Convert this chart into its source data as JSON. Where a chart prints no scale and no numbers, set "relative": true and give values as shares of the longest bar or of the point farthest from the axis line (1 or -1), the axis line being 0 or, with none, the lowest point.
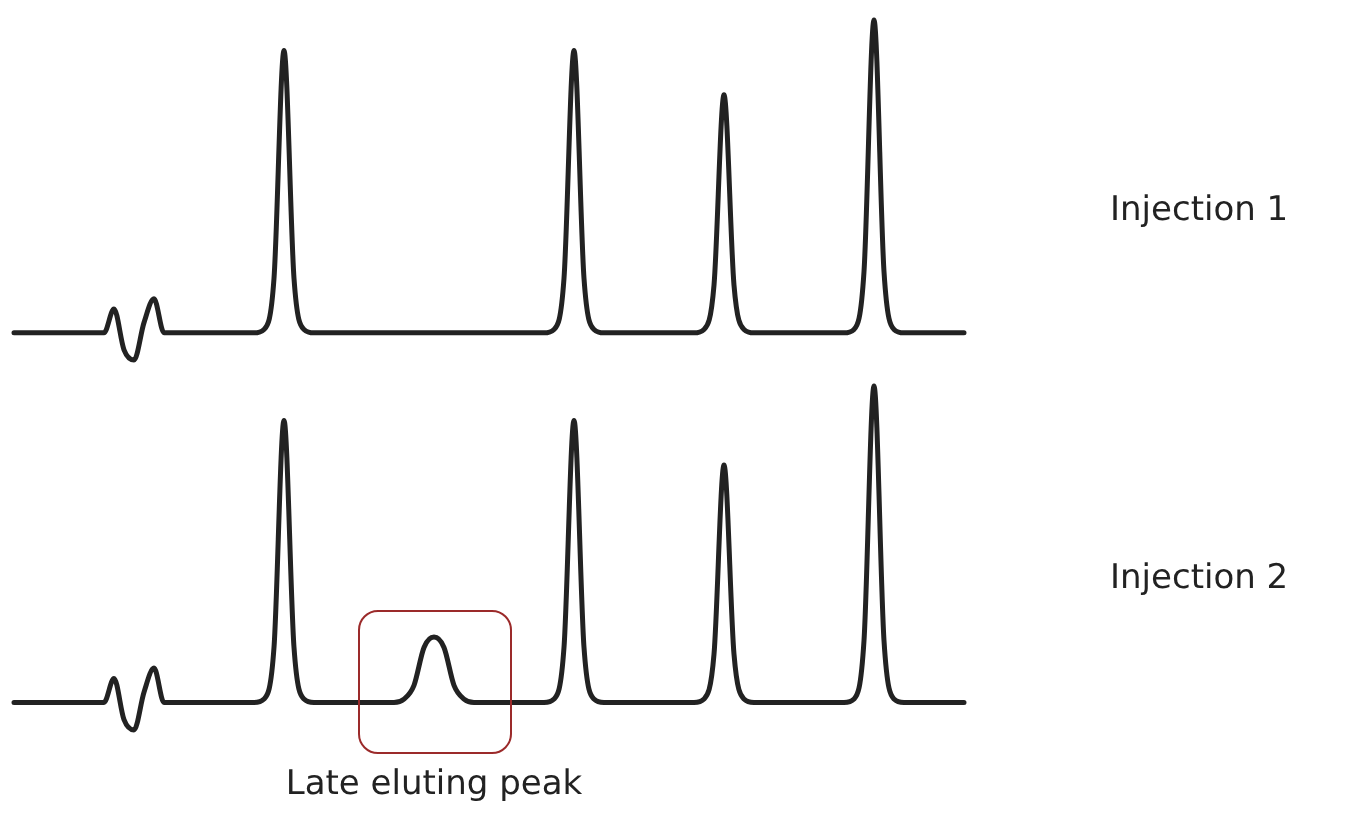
{
  "chart_data": [
    {
      "type": "line",
      "relative": true,
      "categories": [
        null,
        null,
        null,
        null,
        null,
        null,
        null,
        null,
        null,
        null,
        null,
        null,
        null,
        null,
        null,
        null,
        null,
        null,
        null,
        null,
        null,
        null,
        null,
        null,
        null,
        null,
        null,
        null,
        null,
        null,
        null,
        null,
        null,
        null,
        null,
        null,
        null,
        null,
        null,
        null,
        null,
        null,
        null,
        null,
        null,
        null,
        null,
        null,
        null,
        null,
        null,
        null,
        null,
        null,
        null,
        null,
        null,
        null,
        null,
        null,
        null,
        null,
        null,
        null,
        null,
        null,
        null,
        null,
        null,
        null,
        null,
        null,
        null,
        null,
        null,
        null,
        null,
        null,
        null,
        null,
        null,
        null,
        null,
        null,
        null,
        null,
        null,
        null,
        null,
        null,
        null,
        null,
        null,
        null,
        null,
        null
      ],
      "series": [
        {
          "name": "Injection 1",
          "color": "#222222",
          "values": [
            0.08,
            0.08,
            0.08,
            0.08,
            0.08,
            0.08,
            0.08,
            0.08,
            0.08,
            0.08,
            0.15,
            0.03,
            0,
            0.11,
            0.18,
            0.08,
            0.08,
            0.08,
            0.08,
            0.08,
            0.08,
            0.08,
            0.08,
            0.08,
            0.08,
            0.09,
            0.24,
            0.91,
            0.24,
            0.09,
            0.08,
            0.08,
            0.08,
            0.08,
            0.08,
            0.08,
            0.08,
            0.08,
            0.08,
            0.08,
            0.08,
            0.08,
            0.08,
            0.08,
            0.08,
            0.08,
            0.08,
            0.08,
            0.08,
            0.08,
            0.08,
            0.08,
            0.08,
            0.08,
            0.09,
            0.24,
            0.91,
            0.24,
            0.09,
            0.08,
            0.08,
            0.08,
            0.08,
            0.08,
            0.08,
            0.08,
            0.08,
            0.08,
            0.08,
            0.09,
            0.22,
            0.78,
            0.22,
            0.09,
            0.08,
            0.08,
            0.08,
            0.08,
            0.08,
            0.08,
            0.08,
            0.08,
            0.08,
            0.08,
            0.09,
            0.26,
            1,
            0.26,
            0.09,
            0.08,
            0.08,
            0.08,
            0.08,
            0.08,
            0.08,
            0.08
          ]
        }
      ]
    },
    {
      "type": "line",
      "relative": true,
      "categories": [
        null,
        null,
        null,
        null,
        null,
        null,
        null,
        null,
        null,
        null,
        null,
        null,
        null,
        null,
        null,
        null,
        null,
        null,
        null,
        null,
        null,
        null,
        null,
        null,
        null,
        null,
        null,
        null,
        null,
        null,
        null,
        null,
        null,
        null,
        null,
        null,
        null,
        null,
        null,
        null,
        null,
        null,
        null,
        null,
        null,
        null,
        null,
        null,
        null,
        null,
        null,
        null,
        null,
        null,
        null,
        null,
        null,
        null,
        null,
        null,
        null,
        null,
        null,
        null,
        null,
        null,
        null,
        null,
        null,
        null,
        null,
        null,
        null,
        null,
        null,
        null,
        null,
        null,
        null,
        null,
        null,
        null,
        null,
        null,
        null,
        null,
        null,
        null,
        null,
        null,
        null,
        null,
        null,
        null,
        null,
        null
      ],
      "series": [
        {
          "name": "Injection 2",
          "color": "#222222",
          "values": [
            0.08,
            0.08,
            0.08,
            0.08,
            0.08,
            0.08,
            0.08,
            0.08,
            0.08,
            0.08,
            0.15,
            0.03,
            0,
            0.11,
            0.18,
            0.08,
            0.08,
            0.08,
            0.08,
            0.08,
            0.08,
            0.08,
            0.08,
            0.08,
            0.08,
            0.09,
            0.24,
            0.9,
            0.24,
            0.09,
            0.08,
            0.08,
            0.08,
            0.08,
            0.08,
            0.08,
            0.08,
            0.08,
            0.08,
            0.09,
            0.13,
            0.24,
            0.27,
            0.24,
            0.13,
            0.09,
            0.08,
            0.08,
            0.08,
            0.08,
            0.08,
            0.08,
            0.08,
            0.08,
            0.09,
            0.24,
            0.9,
            0.24,
            0.09,
            0.08,
            0.08,
            0.08,
            0.08,
            0.08,
            0.08,
            0.08,
            0.08,
            0.08,
            0.08,
            0.09,
            0.22,
            0.77,
            0.22,
            0.09,
            0.08,
            0.08,
            0.08,
            0.08,
            0.08,
            0.08,
            0.08,
            0.08,
            0.08,
            0.08,
            0.09,
            0.26,
            1,
            0.26,
            0.09,
            0.08,
            0.08,
            0.08,
            0.08,
            0.08,
            0.08,
            0.08
          ]
        }
      ],
      "annotations": [
        "Late eluting peak"
      ]
    }
  ]
}
